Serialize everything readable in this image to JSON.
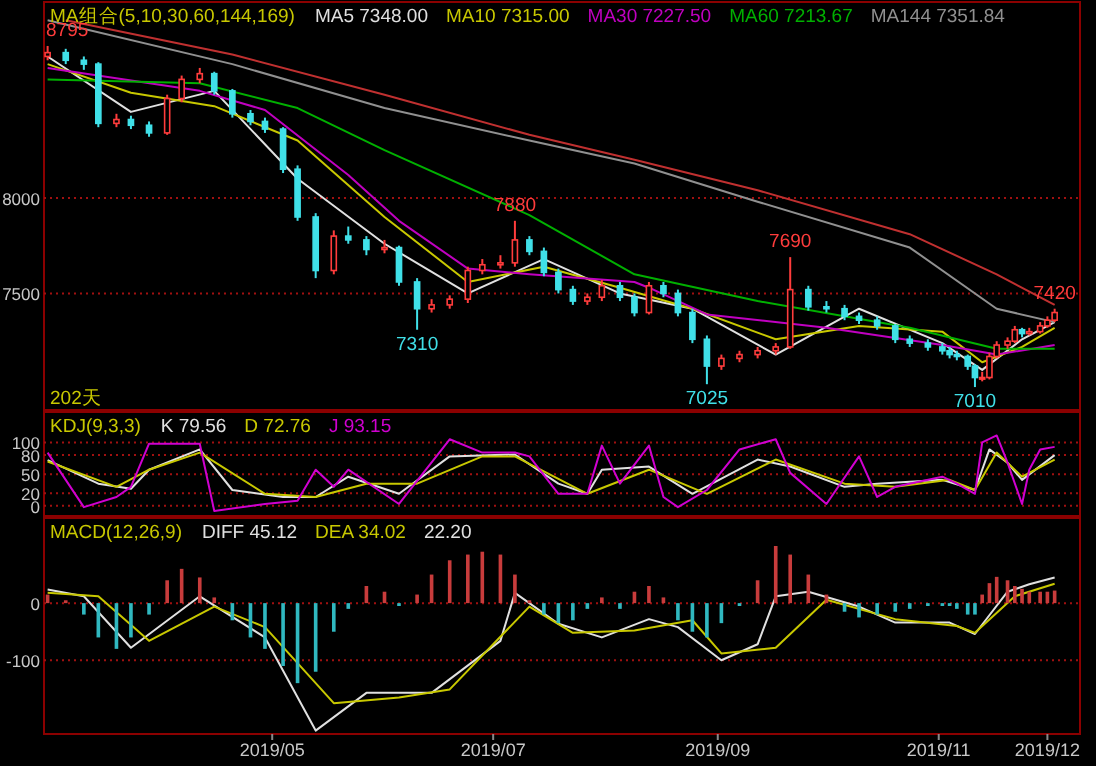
{
  "chart_data": [
    {
      "type": "candlestick",
      "title": "MA组合(5,10,30,60,144,169)",
      "legend": "top",
      "grid": "y",
      "tick_labels": "y",
      "xlim": [
        "2019-02-27",
        "2019-12-10"
      ],
      "ylim": [
        6890,
        9025
      ],
      "yticks": [
        7500,
        8000
      ],
      "x": [
        "2019-02-28",
        "2019-03-05",
        "2019-03-10",
        "2019-03-14",
        "2019-03-19",
        "2019-03-23",
        "2019-03-28",
        "2019-04-02",
        "2019-04-06",
        "2019-04-11",
        "2019-04-15",
        "2019-04-20",
        "2019-04-25",
        "2019-04-29",
        "2019-05-04",
        "2019-05-08",
        "2019-05-13",
        "2019-05-18",
        "2019-05-22",
        "2019-05-27",
        "2019-06-01",
        "2019-06-05",
        "2019-06-10",
        "2019-06-14",
        "2019-06-19",
        "2019-06-24",
        "2019-06-28",
        "2019-07-03",
        "2019-07-07",
        "2019-07-11",
        "2019-07-15",
        "2019-07-19",
        "2019-07-23",
        "2019-07-27",
        "2019-07-31",
        "2019-08-05",
        "2019-08-09",
        "2019-08-13",
        "2019-08-17",
        "2019-08-21",
        "2019-08-25",
        "2019-08-29",
        "2019-09-02",
        "2019-09-07",
        "2019-09-12",
        "2019-09-17",
        "2019-09-21",
        "2019-09-26",
        "2019-10-01",
        "2019-10-06",
        "2019-10-10",
        "2019-10-15",
        "2019-10-20",
        "2019-10-24",
        "2019-10-29",
        "2019-11-02",
        "2019-11-04",
        "2019-11-06",
        "2019-11-09",
        "2019-11-11",
        "2019-11-13",
        "2019-11-15",
        "2019-11-17",
        "2019-11-20",
        "2019-11-22",
        "2019-11-24",
        "2019-11-26",
        "2019-11-29",
        "2019-12-01",
        "2019-12-03"
      ],
      "colors": [
        "#ff3c3c",
        "#40e0e8",
        "#40e0e8",
        "#40e0e8",
        "#ff3c3c",
        "#40e0e8",
        "#40e0e8",
        "#ff3c3c",
        "#ff3c3c",
        "#ff3c3c",
        "#40e0e8",
        "#40e0e8",
        "#40e0e8",
        "#40e0e8",
        "#40e0e8",
        "#40e0e8",
        "#40e0e8",
        "#ff3c3c",
        "#40e0e8",
        "#40e0e8",
        "#ff3c3c",
        "#40e0e8",
        "#40e0e8",
        "#ff3c3c",
        "#ff3c3c",
        "#ff3c3c",
        "#ff3c3c",
        "#ff3c3c",
        "#ff3c3c",
        "#40e0e8",
        "#40e0e8",
        "#40e0e8",
        "#40e0e8",
        "#ff3c3c",
        "#ff3c3c",
        "#40e0e8",
        "#40e0e8",
        "#ff3c3c",
        "#40e0e8",
        "#40e0e8",
        "#40e0e8",
        "#40e0e8",
        "#ff3c3c",
        "#ff3c3c",
        "#ff3c3c",
        "#ff3c3c",
        "#ff3c3c",
        "#40e0e8",
        "#40e0e8",
        "#40e0e8",
        "#40e0e8",
        "#40e0e8",
        "#40e0e8",
        "#40e0e8",
        "#40e0e8",
        "#40e0e8",
        "#40e0e8",
        "#40e0e8",
        "#40e0e8",
        "#40e0e8",
        "#ff3c3c",
        "#ff3c3c",
        "#ff3c3c",
        "#ff3c3c",
        "#ff3c3c",
        "#40e0e8",
        "#ff3c3c",
        "#ff3c3c",
        "#ff3c3c",
        "#ff3c3c"
      ],
      "ohlc": [
        [
          8740,
          8795,
          8720,
          8760
        ],
        [
          8760,
          8780,
          8700,
          8720
        ],
        [
          8720,
          8740,
          8670,
          8700
        ],
        [
          8700,
          8710,
          8370,
          8390
        ],
        [
          8390,
          8440,
          8370,
          8410
        ],
        [
          8410,
          8430,
          8360,
          8380
        ],
        [
          8380,
          8400,
          8320,
          8340
        ],
        [
          8340,
          8540,
          8330,
          8520
        ],
        [
          8520,
          8640,
          8500,
          8620
        ],
        [
          8620,
          8680,
          8600,
          8650
        ],
        [
          8650,
          8660,
          8540,
          8560
        ],
        [
          8560,
          8570,
          8420,
          8440
        ],
        [
          8440,
          8460,
          8380,
          8400
        ],
        [
          8400,
          8420,
          8340,
          8360
        ],
        [
          8360,
          8370,
          8130,
          8150
        ],
        [
          8150,
          8170,
          7880,
          7900
        ],
        [
          7900,
          7920,
          7580,
          7620
        ],
        [
          7620,
          7830,
          7600,
          7800
        ],
        [
          7800,
          7850,
          7760,
          7780
        ],
        [
          7780,
          7800,
          7700,
          7730
        ],
        [
          7730,
          7780,
          7710,
          7740
        ],
        [
          7740,
          7750,
          7540,
          7560
        ],
        [
          7560,
          7580,
          7310,
          7420
        ],
        [
          7420,
          7470,
          7400,
          7440
        ],
        [
          7440,
          7490,
          7420,
          7470
        ],
        [
          7470,
          7640,
          7450,
          7620
        ],
        [
          7620,
          7680,
          7600,
          7650
        ],
        [
          7650,
          7700,
          7630,
          7660
        ],
        [
          7660,
          7880,
          7640,
          7780
        ],
        [
          7780,
          7800,
          7700,
          7720
        ],
        [
          7720,
          7740,
          7590,
          7610
        ],
        [
          7610,
          7630,
          7500,
          7520
        ],
        [
          7520,
          7540,
          7440,
          7460
        ],
        [
          7460,
          7500,
          7440,
          7480
        ],
        [
          7480,
          7570,
          7460,
          7540
        ],
        [
          7540,
          7560,
          7460,
          7480
        ],
        [
          7480,
          7500,
          7380,
          7400
        ],
        [
          7400,
          7560,
          7390,
          7540
        ],
        [
          7540,
          7560,
          7480,
          7500
        ],
        [
          7500,
          7520,
          7380,
          7400
        ],
        [
          7400,
          7420,
          7240,
          7260
        ],
        [
          7260,
          7280,
          7025,
          7120
        ],
        [
          7120,
          7180,
          7100,
          7160
        ],
        [
          7160,
          7200,
          7140,
          7180
        ],
        [
          7180,
          7220,
          7160,
          7200
        ],
        [
          7200,
          7240,
          7180,
          7220
        ],
        [
          7220,
          7690,
          7210,
          7520
        ],
        [
          7520,
          7540,
          7410,
          7430
        ],
        [
          7430,
          7460,
          7400,
          7420
        ],
        [
          7420,
          7440,
          7360,
          7380
        ],
        [
          7380,
          7400,
          7340,
          7360
        ],
        [
          7360,
          7380,
          7310,
          7330
        ],
        [
          7330,
          7340,
          7240,
          7260
        ],
        [
          7260,
          7280,
          7220,
          7240
        ],
        [
          7240,
          7260,
          7200,
          7220
        ],
        [
          7220,
          7240,
          7180,
          7200
        ],
        [
          7200,
          7220,
          7160,
          7180
        ],
        [
          7180,
          7200,
          7150,
          7170
        ],
        [
          7170,
          7180,
          7100,
          7120
        ],
        [
          7120,
          7130,
          7010,
          7060
        ],
        [
          7060,
          7090,
          7040,
          7060
        ],
        [
          7060,
          7190,
          7050,
          7170
        ],
        [
          7170,
          7250,
          7160,
          7230
        ],
        [
          7230,
          7270,
          7210,
          7250
        ],
        [
          7250,
          7330,
          7240,
          7310
        ],
        [
          7310,
          7320,
          7270,
          7290
        ],
        [
          7290,
          7320,
          7280,
          7300
        ],
        [
          7300,
          7350,
          7290,
          7330
        ],
        [
          7330,
          7380,
          7320,
          7360
        ],
        [
          7360,
          7420,
          7350,
          7400
        ]
      ],
      "series": [
        {
          "type": "line",
          "name": "MA5 7348.00",
          "color": "#e0e0e0",
          "x": [
            "2019-02-28",
            "2019-03-23",
            "2019-04-15",
            "2019-05-08",
            "2019-06-01",
            "2019-06-24",
            "2019-07-15",
            "2019-08-05",
            "2019-08-25",
            "2019-09-17",
            "2019-10-10",
            "2019-11-02",
            "2019-11-13",
            "2019-11-24",
            "2019-12-03"
          ],
          "values": [
            8740,
            8450,
            8560,
            8100,
            7760,
            7500,
            7680,
            7500,
            7420,
            7180,
            7420,
            7240,
            7100,
            7260,
            7350
          ]
        },
        {
          "type": "line",
          "name": "MA10 7315.00",
          "color": "#c8c800",
          "x": [
            "2019-02-28",
            "2019-03-23",
            "2019-04-15",
            "2019-05-08",
            "2019-06-01",
            "2019-06-24",
            "2019-07-15",
            "2019-08-05",
            "2019-08-25",
            "2019-09-17",
            "2019-10-10",
            "2019-11-02",
            "2019-11-13",
            "2019-11-24",
            "2019-12-03"
          ],
          "values": [
            8700,
            8550,
            8480,
            8300,
            7900,
            7560,
            7640,
            7530,
            7420,
            7260,
            7330,
            7300,
            7140,
            7220,
            7320
          ]
        },
        {
          "type": "line",
          "name": "MA30 7227.50",
          "color": "#c000c0",
          "x": [
            "2019-02-28",
            "2019-04-11",
            "2019-04-29",
            "2019-05-22",
            "2019-06-05",
            "2019-06-24",
            "2019-07-11",
            "2019-08-09",
            "2019-08-13",
            "2019-08-29",
            "2019-10-01",
            "2019-11-02",
            "2019-11-17",
            "2019-12-03"
          ],
          "values": [
            8680,
            8560,
            8460,
            8120,
            7880,
            7630,
            7600,
            7560,
            7530,
            7390,
            7320,
            7230,
            7180,
            7230
          ]
        },
        {
          "type": "line",
          "name": "MA60 7213.67",
          "color": "#00b000",
          "x": [
            "2019-02-28",
            "2019-04-11",
            "2019-05-08",
            "2019-06-01",
            "2019-07-11",
            "2019-08-09",
            "2019-09-12",
            "2019-10-24",
            "2019-11-17",
            "2019-12-03"
          ],
          "values": [
            8620,
            8600,
            8470,
            8250,
            7910,
            7600,
            7460,
            7320,
            7210,
            7210
          ]
        },
        {
          "type": "line",
          "name": "MA144 7351.84",
          "color": "#909090",
          "x": [
            "2019-02-28",
            "2019-04-20",
            "2019-06-01",
            "2019-07-11",
            "2019-08-09",
            "2019-09-12",
            "2019-10-24",
            "2019-11-17",
            "2019-12-03"
          ],
          "values": [
            8930,
            8700,
            8470,
            8300,
            8180,
            7980,
            7740,
            7420,
            7350
          ]
        },
        {
          "type": "line",
          "color": "#c03030",
          "x": [
            "2019-03-05",
            "2019-04-20",
            "2019-06-01",
            "2019-07-11",
            "2019-08-09",
            "2019-09-12",
            "2019-10-24",
            "2019-11-17",
            "2019-12-03"
          ],
          "values": [
            8930,
            8750,
            8540,
            8330,
            8200,
            8040,
            7810,
            7600,
            7440
          ]
        }
      ],
      "annotations": [
        {
          "text": "8795",
          "x": "2019-02-28",
          "y": 8795
        },
        {
          "text": "7880",
          "x": "2019-07-07",
          "y": 7880
        },
        {
          "text": "7310",
          "x": "2019-06-10",
          "y": 7310
        },
        {
          "text": "7690",
          "x": "2019-09-21",
          "y": 7690
        },
        {
          "text": "7025",
          "x": "2019-08-29",
          "y": 7025
        },
        {
          "text": "7010",
          "x": "2019-11-11",
          "y": 7010
        },
        {
          "text": "7420",
          "x": "2019-12-03",
          "y": 7420
        },
        "202天"
      ]
    },
    {
      "type": "line",
      "title": "KDJ(9,3,3)",
      "legend": "top left",
      "grid": "y",
      "tick_labels": "y",
      "xlim": [
        "2019-02-27",
        "2019-12-10"
      ],
      "ylim": [
        -16,
        148
      ],
      "yticks": [
        0,
        20,
        50,
        80,
        100
      ],
      "series": [
        {
          "name": "K 79.56",
          "color": "#e0e0e0",
          "x": [
            "2019-02-28",
            "2019-03-14",
            "2019-03-23",
            "2019-03-28",
            "2019-04-11",
            "2019-04-20",
            "2019-05-04",
            "2019-05-13",
            "2019-05-22",
            "2019-06-05",
            "2019-06-19",
            "2019-07-07",
            "2019-07-19",
            "2019-07-27",
            "2019-07-31",
            "2019-08-13",
            "2019-08-25",
            "2019-09-12",
            "2019-09-21",
            "2019-10-06",
            "2019-10-15",
            "2019-11-02",
            "2019-11-11",
            "2019-11-15",
            "2019-11-20",
            "2019-11-24",
            "2019-12-03"
          ],
          "values": [
            72,
            35,
            27,
            57,
            89,
            25,
            14,
            14,
            46,
            19,
            78,
            81,
            35,
            19,
            57,
            62,
            19,
            73,
            62,
            30,
            35,
            41,
            25,
            89,
            68,
            41,
            80
          ]
        },
        {
          "name": "D 72.76",
          "color": "#c8c800",
          "x": [
            "2019-02-28",
            "2019-03-19",
            "2019-03-28",
            "2019-04-11",
            "2019-04-29",
            "2019-05-13",
            "2019-05-27",
            "2019-06-10",
            "2019-06-28",
            "2019-07-07",
            "2019-07-27",
            "2019-08-13",
            "2019-08-29",
            "2019-09-17",
            "2019-10-06",
            "2019-10-20",
            "2019-11-04",
            "2019-11-11",
            "2019-11-17",
            "2019-11-24",
            "2019-12-03"
          ],
          "values": [
            70,
            30,
            57,
            84,
            19,
            14,
            35,
            35,
            78,
            78,
            19,
            57,
            19,
            73,
            35,
            30,
            41,
            25,
            84,
            46,
            73
          ]
        },
        {
          "name": "J 93.15",
          "color": "#d000d0",
          "x": [
            "2019-02-28",
            "2019-03-10",
            "2019-03-19",
            "2019-03-23",
            "2019-03-28",
            "2019-04-11",
            "2019-04-15",
            "2019-04-29",
            "2019-05-08",
            "2019-05-13",
            "2019-05-18",
            "2019-05-22",
            "2019-06-05",
            "2019-06-19",
            "2019-06-28",
            "2019-07-07",
            "2019-07-11",
            "2019-07-19",
            "2019-07-27",
            "2019-07-31",
            "2019-08-05",
            "2019-08-13",
            "2019-08-17",
            "2019-08-21",
            "2019-08-29",
            "2019-09-07",
            "2019-09-17",
            "2019-09-21",
            "2019-10-01",
            "2019-10-10",
            "2019-10-15",
            "2019-10-20",
            "2019-11-02",
            "2019-11-06",
            "2019-11-11",
            "2019-11-13",
            "2019-11-17",
            "2019-11-20",
            "2019-11-24",
            "2019-11-26",
            "2019-11-29",
            "2019-12-03"
          ],
          "values": [
            84,
            -2,
            14,
            30,
            98,
            98,
            -8,
            3,
            8,
            57,
            30,
            57,
            3,
            105,
            84,
            84,
            78,
            19,
            19,
            95,
            35,
            95,
            14,
            -2,
            25,
            89,
            105,
            52,
            3,
            78,
            14,
            30,
            46,
            35,
            19,
            100,
            111,
            68,
            3,
            57,
            89,
            93
          ]
        }
      ]
    },
    {
      "type": "line",
      "title": "MACD(12,26,9)",
      "legend": "top left",
      "grid": "y",
      "xlim": [
        "2019-02-27",
        "2019-12-10"
      ],
      "ylim": [
        -229,
        149
      ],
      "yticks": [
        -100,
        0
      ],
      "xticks": [
        {
          "value": "2019-05-01",
          "label": "2019/05"
        },
        {
          "value": "2019-07-01",
          "label": "2019/07"
        },
        {
          "value": "2019-09-01",
          "label": "2019/09"
        },
        {
          "value": "2019-11-01",
          "label": "2019/11"
        },
        {
          "value": "2019-12-01",
          "label": "2019/12"
        }
      ],
      "series": [
        {
          "type": "bar",
          "x": [
            "2019-02-28",
            "2019-03-05",
            "2019-03-10",
            "2019-03-14",
            "2019-03-19",
            "2019-03-23",
            "2019-03-28",
            "2019-04-02",
            "2019-04-06",
            "2019-04-11",
            "2019-04-15",
            "2019-04-20",
            "2019-04-25",
            "2019-04-29",
            "2019-05-04",
            "2019-05-08",
            "2019-05-13",
            "2019-05-18",
            "2019-05-22",
            "2019-05-27",
            "2019-06-01",
            "2019-06-05",
            "2019-06-10",
            "2019-06-14",
            "2019-06-19",
            "2019-06-24",
            "2019-06-28",
            "2019-07-03",
            "2019-07-07",
            "2019-07-11",
            "2019-07-15",
            "2019-07-19",
            "2019-07-23",
            "2019-07-27",
            "2019-07-31",
            "2019-08-05",
            "2019-08-09",
            "2019-08-13",
            "2019-08-17",
            "2019-08-21",
            "2019-08-25",
            "2019-08-29",
            "2019-09-02",
            "2019-09-07",
            "2019-09-12",
            "2019-09-17",
            "2019-09-21",
            "2019-09-26",
            "2019-10-01",
            "2019-10-06",
            "2019-10-10",
            "2019-10-15",
            "2019-10-20",
            "2019-10-24",
            "2019-10-29",
            "2019-11-02",
            "2019-11-04",
            "2019-11-06",
            "2019-11-09",
            "2019-11-11",
            "2019-11-13",
            "2019-11-15",
            "2019-11-17",
            "2019-11-20",
            "2019-11-22",
            "2019-11-24",
            "2019-11-26",
            "2019-11-29",
            "2019-12-01",
            "2019-12-03"
          ],
          "values": [
            15,
            5,
            -20,
            -60,
            -80,
            -60,
            -20,
            40,
            60,
            45,
            10,
            -30,
            -60,
            -80,
            -110,
            -140,
            -120,
            -50,
            -10,
            30,
            20,
            -5,
            15,
            50,
            75,
            85,
            90,
            85,
            50,
            5,
            -20,
            -35,
            -30,
            -10,
            10,
            -10,
            20,
            30,
            10,
            -30,
            -50,
            -60,
            -35,
            -5,
            40,
            100,
            85,
            50,
            15,
            -15,
            -25,
            -20,
            -15,
            -10,
            -5,
            -5,
            -5,
            -10,
            -20,
            -20,
            15,
            35,
            46,
            40,
            30,
            25,
            20,
            20,
            20,
            22
          ],
          "colors": [
            "#c83c3c",
            "#c83c3c",
            "#30b8c0",
            "#30b8c0",
            "#30b8c0",
            "#30b8c0",
            "#30b8c0",
            "#c83c3c",
            "#c83c3c",
            "#c83c3c",
            "#c83c3c",
            "#30b8c0",
            "#30b8c0",
            "#30b8c0",
            "#30b8c0",
            "#30b8c0",
            "#30b8c0",
            "#30b8c0",
            "#30b8c0",
            "#c83c3c",
            "#c83c3c",
            "#30b8c0",
            "#c83c3c",
            "#c83c3c",
            "#c83c3c",
            "#c83c3c",
            "#c83c3c",
            "#c83c3c",
            "#c83c3c",
            "#c83c3c",
            "#30b8c0",
            "#30b8c0",
            "#30b8c0",
            "#30b8c0",
            "#c83c3c",
            "#30b8c0",
            "#c83c3c",
            "#c83c3c",
            "#c83c3c",
            "#30b8c0",
            "#30b8c0",
            "#30b8c0",
            "#30b8c0",
            "#30b8c0",
            "#c83c3c",
            "#c83c3c",
            "#c83c3c",
            "#c83c3c",
            "#c83c3c",
            "#30b8c0",
            "#30b8c0",
            "#30b8c0",
            "#30b8c0",
            "#30b8c0",
            "#30b8c0",
            "#30b8c0",
            "#30b8c0",
            "#30b8c0",
            "#30b8c0",
            "#30b8c0",
            "#c83c3c",
            "#c83c3c",
            "#c83c3c",
            "#c83c3c",
            "#c83c3c",
            "#c83c3c",
            "#c83c3c",
            "#c83c3c",
            "#c83c3c",
            "#c83c3c"
          ]
        },
        {
          "type": "line",
          "name": "DIFF 45.12",
          "color": "#e0e0e0",
          "x": [
            "2019-02-28",
            "2019-03-10",
            "2019-03-23",
            "2019-04-11",
            "2019-04-29",
            "2019-05-13",
            "2019-05-27",
            "2019-06-14",
            "2019-07-03",
            "2019-07-07",
            "2019-07-19",
            "2019-07-31",
            "2019-08-13",
            "2019-08-21",
            "2019-09-02",
            "2019-09-12",
            "2019-09-17",
            "2019-09-26",
            "2019-10-10",
            "2019-10-20",
            "2019-11-04",
            "2019-11-11",
            "2019-11-20",
            "2019-11-26",
            "2019-12-03"
          ],
          "values": [
            24,
            12,
            -78,
            12,
            -60,
            -223,
            -157,
            -157,
            -66,
            18,
            -36,
            -60,
            -28,
            -42,
            -100,
            -72,
            12,
            20,
            -6,
            -34,
            -34,
            -54,
            20,
            33,
            45
          ]
        },
        {
          "type": "line",
          "name": "DEA 34.02",
          "color": "#c8c800",
          "x": [
            "2019-02-28",
            "2019-03-14",
            "2019-03-28",
            "2019-04-15",
            "2019-04-29",
            "2019-05-18",
            "2019-06-05",
            "2019-06-19",
            "2019-07-11",
            "2019-07-23",
            "2019-08-09",
            "2019-08-25",
            "2019-09-02",
            "2019-09-17",
            "2019-10-01",
            "2019-10-20",
            "2019-11-06",
            "2019-11-11",
            "2019-11-22",
            "2019-12-03"
          ],
          "values": [
            18,
            12,
            -66,
            -6,
            -42,
            -175,
            -165,
            -151,
            -6,
            -52,
            -48,
            -30,
            -88,
            -78,
            6,
            -28,
            -40,
            -52,
            12,
            34
          ]
        }
      ],
      "annotations": [
        "22.20"
      ]
    }
  ]
}
